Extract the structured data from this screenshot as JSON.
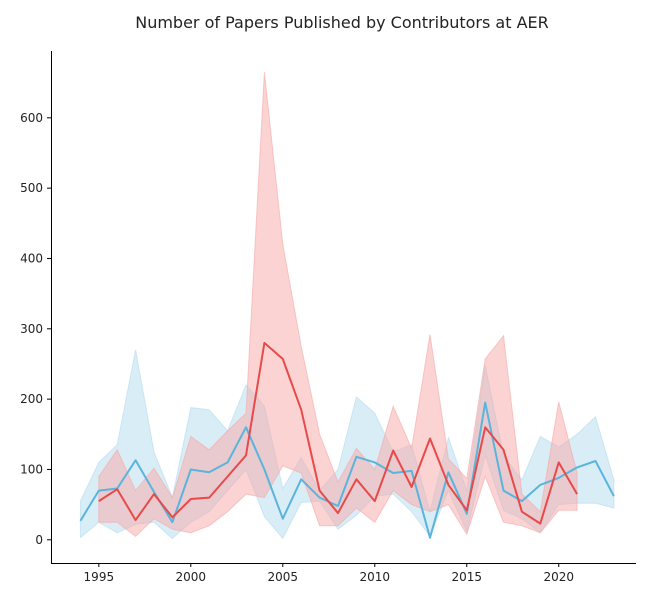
{
  "chart_data": {
    "type": "line",
    "title": "Number of Papers Published by Contributors at AER",
    "xlabel": "",
    "ylabel": "",
    "xlim": [
      1992.4,
      2024.2
    ],
    "ylim": [
      -33,
      695
    ],
    "xticks": [
      1995,
      2000,
      2005,
      2010,
      2015,
      2020
    ],
    "xtick_labels": [
      "1995",
      "2000",
      "2005",
      "2010",
      "2015",
      "2020"
    ],
    "yticks": [
      0,
      100,
      200,
      300,
      400,
      500,
      600
    ],
    "ytick_labels": [
      "0",
      "100",
      "200",
      "300",
      "400",
      "500",
      "600"
    ],
    "grid": false,
    "legend": "none",
    "series": [
      {
        "name": "red series",
        "color": "#e84a4a",
        "band_color": "#f7a8a8",
        "x": [
          1995,
          1996,
          1997,
          1998,
          1999,
          2000,
          2001,
          2002,
          2003,
          2004,
          2005,
          2006,
          2007,
          2008,
          2009,
          2010,
          2011,
          2012,
          2013,
          2014,
          2015,
          2016,
          2017,
          2018,
          2019,
          2020,
          2021
        ],
        "y": [
          55,
          72,
          28,
          65,
          32,
          58,
          60,
          90,
          120,
          280,
          257,
          185,
          70,
          38,
          86,
          55,
          127,
          75,
          144,
          78,
          42,
          160,
          128,
          40,
          23,
          110,
          65
        ],
        "lower": [
          25,
          25,
          5,
          30,
          15,
          10,
          20,
          40,
          65,
          60,
          105,
          95,
          20,
          20,
          45,
          25,
          70,
          50,
          40,
          50,
          8,
          90,
          25,
          20,
          10,
          42,
          42
        ],
        "upper": [
          90,
          128,
          70,
          102,
          60,
          147,
          128,
          155,
          180,
          665,
          420,
          275,
          150,
          82,
          130,
          100,
          190,
          130,
          292,
          115,
          87,
          257,
          290,
          65,
          40,
          196,
          95
        ]
      },
      {
        "name": "blue series",
        "color": "#5ab4dc",
        "band_color": "#b4dcee",
        "x": [
          1994,
          1995,
          1996,
          1997,
          1998,
          1999,
          2000,
          2001,
          2002,
          2003,
          2004,
          2005,
          2006,
          2007,
          2008,
          2009,
          2010,
          2011,
          2012,
          2013,
          2014,
          2015,
          2016,
          2017,
          2018,
          2019,
          2020,
          2021,
          2022,
          2023
        ],
        "y": [
          27,
          70,
          73,
          113,
          68,
          25,
          100,
          96,
          110,
          160,
          100,
          30,
          86,
          60,
          48,
          118,
          110,
          95,
          98,
          3,
          96,
          37,
          195,
          70,
          55,
          78,
          88,
          103,
          112,
          62
        ],
        "lower": [
          3,
          25,
          10,
          22,
          25,
          2,
          25,
          40,
          70,
          100,
          33,
          2,
          53,
          55,
          15,
          35,
          62,
          65,
          40,
          5,
          70,
          12,
          120,
          42,
          30,
          10,
          50,
          52,
          52,
          45
        ],
        "upper": [
          55,
          110,
          135,
          270,
          125,
          60,
          188,
          185,
          155,
          220,
          190,
          73,
          117,
          70,
          100,
          203,
          180,
          125,
          135,
          40,
          145,
          70,
          248,
          120,
          85,
          147,
          132,
          150,
          175,
          85
        ]
      }
    ]
  }
}
